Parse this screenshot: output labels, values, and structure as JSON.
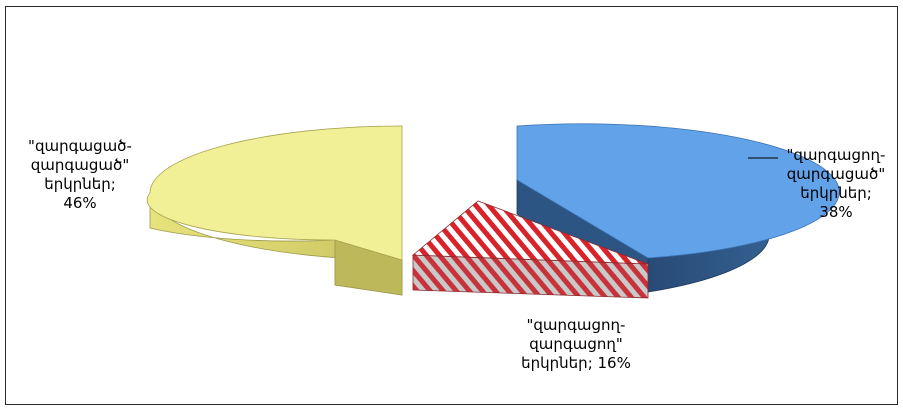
{
  "chart_data": {
    "type": "pie",
    "style": "3d-exploded",
    "slices": [
      {
        "id": "developed-developed",
        "label_lines": [
          "\"զարգացած-",
          "զարգացած\"",
          "երկրներ;",
          "46%"
        ],
        "value": 46,
        "color": "#f1ef93",
        "side_color": "#cdc964",
        "pattern": "solid"
      },
      {
        "id": "developing-developed",
        "label_lines": [
          "\"զարգացող-",
          "զարգացած\"",
          "երկրներ;",
          "38%"
        ],
        "value": 38,
        "color": "#5e9fe6",
        "side_color": "#2a4f7e",
        "pattern": "solid"
      },
      {
        "id": "developing-developing",
        "label_lines": [
          "\"զարգացող-",
          "զարգացող\"",
          "երկրներ; 16%"
        ],
        "value": 16,
        "color": "#d8232b",
        "side_color": "#c4c4c4",
        "pattern": "diagonal-stripes"
      }
    ]
  }
}
